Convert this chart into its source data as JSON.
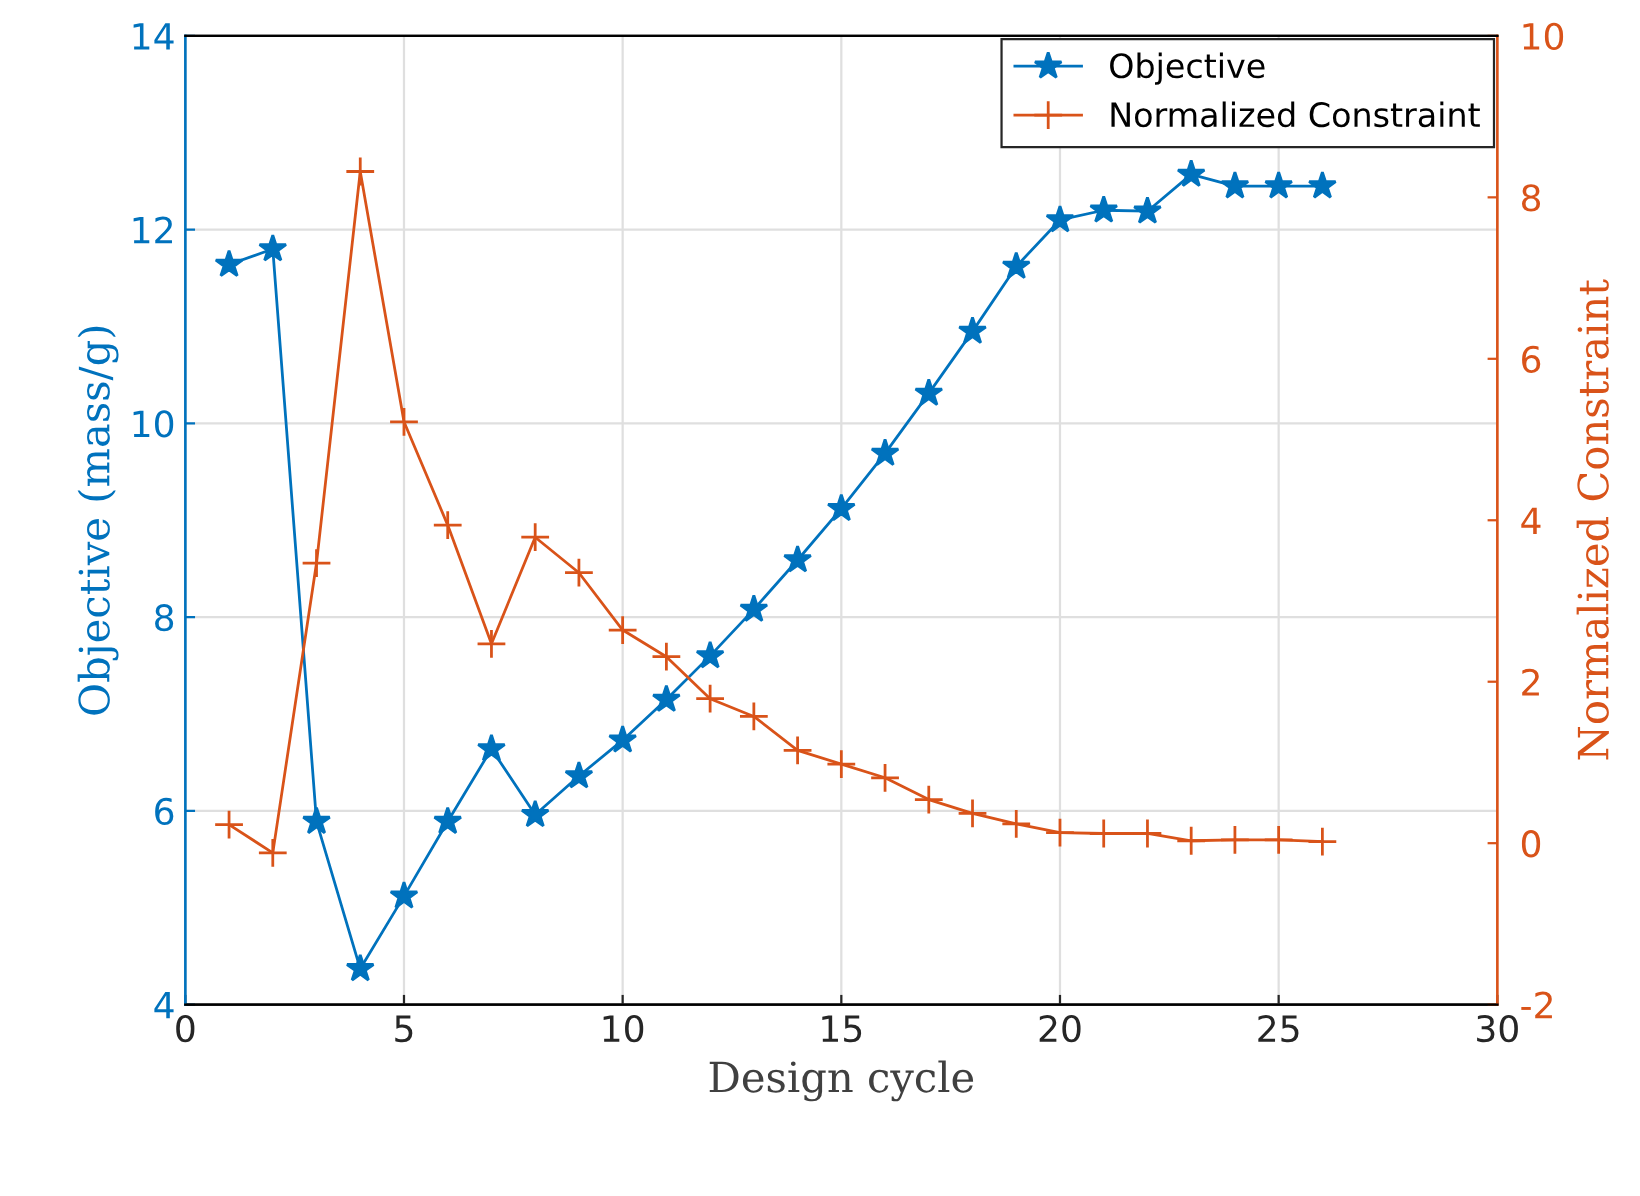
{
  "chart_data": {
    "type": "line",
    "xlabel": "Design cycle",
    "ylabel": "Objective (mass/g)",
    "y2label": "Normalized Constraint",
    "x": [
      1,
      2,
      3,
      4,
      5,
      6,
      7,
      8,
      9,
      10,
      11,
      12,
      13,
      14,
      15,
      16,
      17,
      18,
      19,
      20,
      21,
      22,
      23,
      24,
      25,
      26
    ],
    "xlim": [
      0,
      30
    ],
    "xticks": [
      0,
      5,
      10,
      15,
      20,
      25,
      30
    ],
    "ylim": [
      4,
      14
    ],
    "yticks": [
      4,
      6,
      8,
      10,
      12,
      14
    ],
    "y2lim": [
      -2,
      10
    ],
    "y2ticks": [
      {
        "value": -2,
        "label": "-2"
      },
      0,
      2,
      4,
      6,
      8,
      10
    ],
    "grid": true,
    "legend": "top right",
    "series": [
      {
        "name": "Objective",
        "color": "#0072bd",
        "marker": "star",
        "values": [
          11.64,
          11.8,
          5.89,
          4.37,
          5.12,
          5.89,
          6.64,
          5.96,
          6.36,
          6.73,
          7.15,
          7.6,
          8.08,
          8.59,
          9.12,
          9.69,
          10.31,
          10.95,
          11.62,
          12.1,
          12.2,
          12.19,
          12.57,
          12.45,
          12.45,
          12.45
        ]
      },
      {
        "name": "Normalized Constraint",
        "color": "#d95319",
        "marker": "cross",
        "axis": "y2",
        "values": [
          0.23,
          -0.12,
          3.47,
          8.32,
          5.22,
          3.94,
          2.47,
          3.79,
          3.35,
          2.64,
          2.31,
          1.79,
          1.57,
          1.15,
          0.98,
          0.81,
          0.54,
          0.37,
          0.24,
          0.13,
          0.12,
          0.12,
          0.03,
          0.04,
          0.04,
          0.02
        ]
      }
    ]
  }
}
